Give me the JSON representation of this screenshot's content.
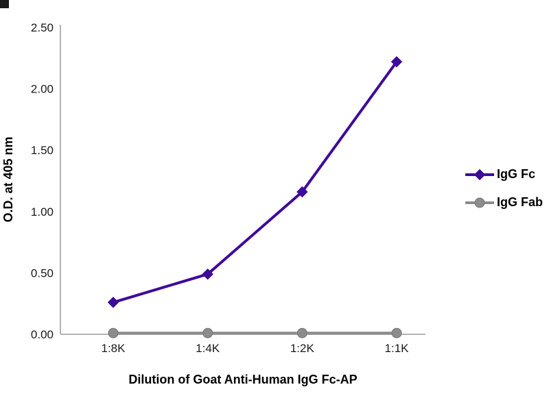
{
  "chart_data": {
    "type": "line",
    "title": "",
    "categories": [
      "1:8K",
      "1:4K",
      "1:2K",
      "1:1K"
    ],
    "series": [
      {
        "name": "IgG Fc",
        "marker": "diamond",
        "color": "#3F0A99",
        "values": [
          0.26,
          0.49,
          1.16,
          2.22
        ]
      },
      {
        "name": "IgG Fab",
        "marker": "circle",
        "color": "#8C8C8C",
        "values": [
          0.01,
          0.01,
          0.01,
          0.01
        ]
      }
    ],
    "xlabel": "Dilution of Goat Anti-Human IgG Fc-AP",
    "ylabel": "O.D. at 405 nm",
    "ylim": [
      0,
      2.5
    ],
    "yticks": [
      0.0,
      0.5,
      1.0,
      1.5,
      2.0,
      2.5
    ],
    "grid": false,
    "legend_position": "right",
    "axis_color": "#B3B3B3"
  }
}
